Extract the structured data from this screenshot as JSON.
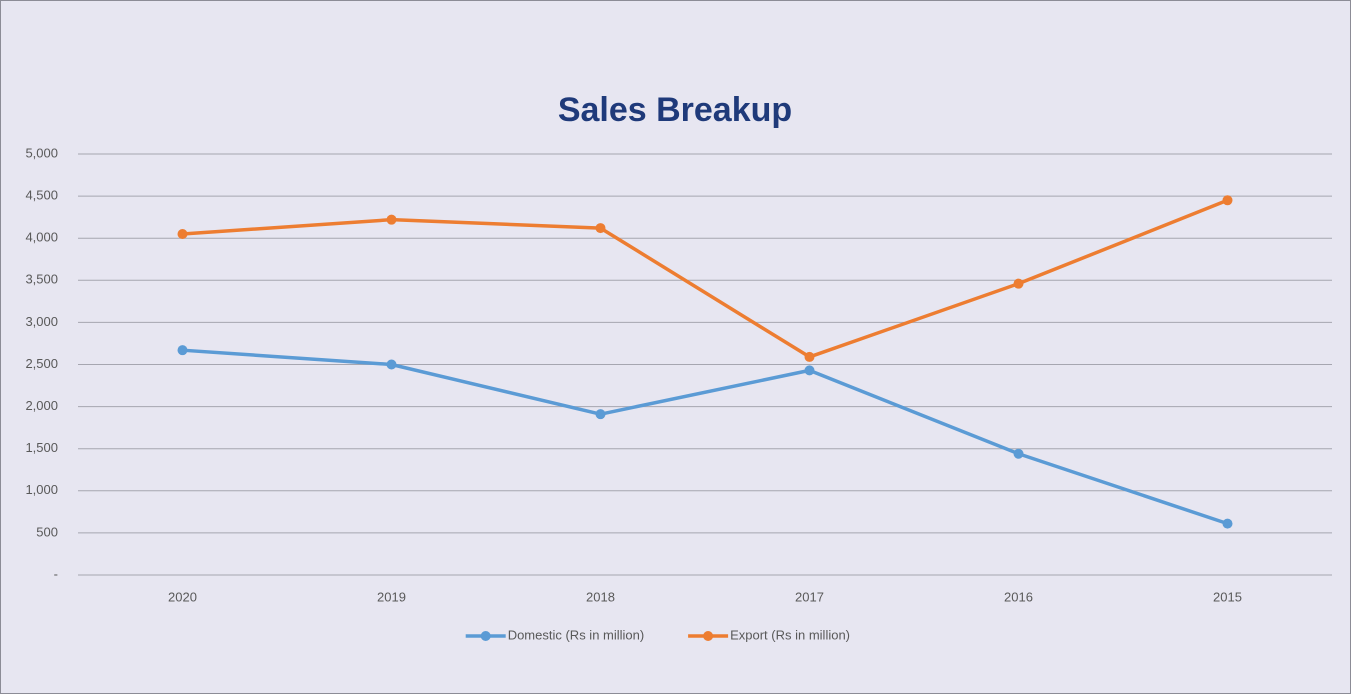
{
  "chart_data": {
    "type": "line",
    "title": "Sales Breakup",
    "categories": [
      "2020",
      "2019",
      "2018",
      "2017",
      "2016",
      "2015"
    ],
    "series": [
      {
        "name": "Domestic (Rs in million)",
        "color": "#5b9bd5",
        "values": [
          2670,
          2500,
          1910,
          2430,
          1440,
          610
        ]
      },
      {
        "name": "Export (Rs in million)",
        "color": "#ed7d31",
        "values": [
          4050,
          4220,
          4120,
          2590,
          3460,
          4450
        ]
      }
    ],
    "ylim": [
      0,
      5000
    ],
    "yticks": [
      {
        "value": 0,
        "label": "-"
      },
      500,
      {
        "value": 1000,
        "label": "1,000"
      },
      {
        "value": 1500,
        "label": "1,500"
      },
      {
        "value": 2000,
        "label": "2,000"
      },
      {
        "value": 2500,
        "label": "2,500"
      },
      {
        "value": 3000,
        "label": "3,000"
      },
      {
        "value": 3500,
        "label": "3,500"
      },
      {
        "value": 4000,
        "label": "4,000"
      },
      {
        "value": 4500,
        "label": "4,500"
      },
      {
        "value": 5000,
        "label": "5,000"
      }
    ],
    "grid": true,
    "legend": "bottom"
  }
}
